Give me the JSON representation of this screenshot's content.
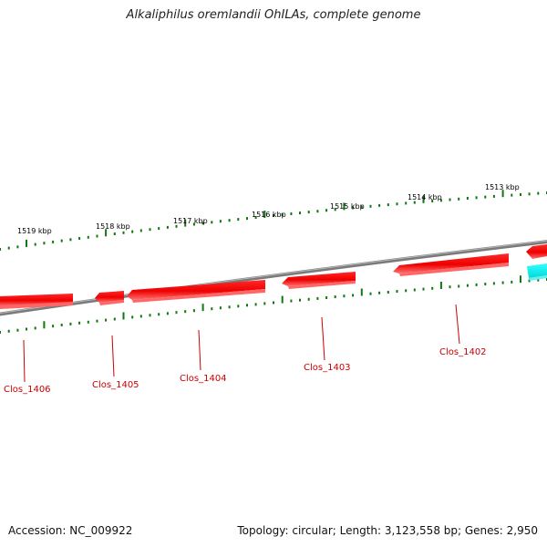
{
  "title": "Alkaliphilus oremlandii OhILAs, complete genome",
  "footer": {
    "accession": "Accession: NC_009922",
    "summary": "Topology: circular; Length: 3,123,558 bp; Genes: 2,950"
  },
  "colors": {
    "backbone": "#888888",
    "gene_forward": "#ff0000",
    "gene_reverse": "#ff0000",
    "gene_other": "#00ffff",
    "tick": "#117711",
    "gene_label": "#cc0000",
    "kbp_label": "#000000"
  },
  "kbp_ticks": [
    {
      "label": "1519 kbp"
    },
    {
      "label": "1518 kbp"
    },
    {
      "label": "1517 kbp"
    },
    {
      "label": "1516 kbp"
    },
    {
      "label": "1515 kbp"
    },
    {
      "label": "1514 kbp"
    },
    {
      "label": "1513 kbp"
    }
  ],
  "genes": [
    {
      "name": "Clos_1406"
    },
    {
      "name": "Clos_1405"
    },
    {
      "name": "Clos_1404"
    },
    {
      "name": "Clos_1403"
    },
    {
      "name": "Clos_1402"
    }
  ]
}
